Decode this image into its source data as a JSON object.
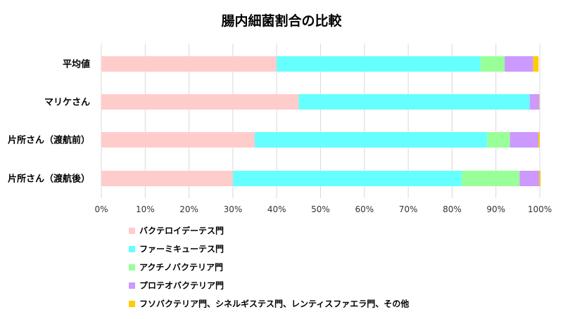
{
  "chart_data": {
    "type": "bar",
    "orientation": "horizontal",
    "stacked": "percent",
    "title": "腸内細菌割合の比較",
    "categories": [
      "平均値",
      "マリケさん",
      "片所さん（渡航前）",
      "片所さん（渡航後）"
    ],
    "series": [
      {
        "name": "バクテロイデーテス門",
        "color": "#ffcccc",
        "values": [
          40,
          45,
          35,
          30
        ]
      },
      {
        "name": "ファーミキューテス門",
        "color": "#66ffff",
        "values": [
          46.5,
          52.7,
          53,
          52.2
        ]
      },
      {
        "name": "アクチノバクテリア門",
        "color": "#99ff99",
        "values": [
          5.5,
          0,
          5.2,
          13.2
        ]
      },
      {
        "name": "プロテオバクテリア門",
        "color": "#cc99ff",
        "values": [
          6.5,
          2.2,
          6.5,
          4.5
        ]
      },
      {
        "name": "フソバクテリア門、シネルギステス門、レンティスファエラ門、その他",
        "color": "#ffcc00",
        "values": [
          1.2,
          0.1,
          0.3,
          0.3
        ]
      }
    ],
    "xticks": [
      "0%",
      "10%",
      "20%",
      "30%",
      "40%",
      "50%",
      "60%",
      "70%",
      "80%",
      "90%",
      "100%"
    ],
    "xlim": [
      0,
      100
    ],
    "grid": true,
    "legend_position": "bottom"
  }
}
